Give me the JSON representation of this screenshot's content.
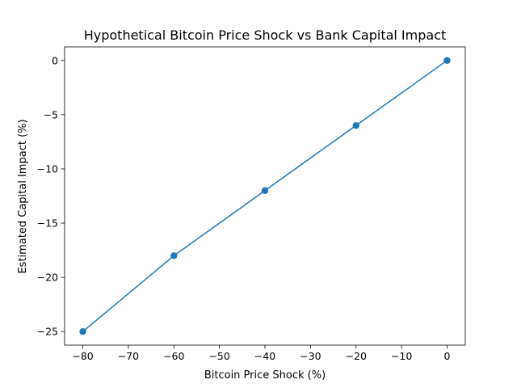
{
  "chart_data": {
    "type": "line",
    "title": "Hypothetical Bitcoin Price Shock vs Bank Capital Impact",
    "xlabel": "Bitcoin Price Shock (%)",
    "ylabel": "Estimated Capital Impact (%)",
    "x": [
      -80,
      -60,
      -40,
      -20,
      0
    ],
    "series": [
      {
        "name": "",
        "values": [
          -25,
          -18,
          -12,
          -6,
          0
        ],
        "color": "#1f77b4",
        "marker": "circle"
      }
    ],
    "xlim": [
      -84,
      4
    ],
    "ylim": [
      -26.25,
      1.25
    ],
    "xticks": [
      -80,
      -70,
      -60,
      -50,
      -40,
      -30,
      -20,
      -10,
      0
    ],
    "xtick_labels": [
      "−80",
      "−70",
      "−60",
      "−50",
      "−40",
      "−30",
      "−20",
      "−10",
      "0"
    ],
    "yticks": [
      -25,
      -20,
      -15,
      -10,
      -5,
      0
    ],
    "ytick_labels": [
      "−25",
      "−20",
      "−15",
      "−10",
      "−5",
      "0"
    ],
    "grid": false,
    "legend": "none"
  }
}
